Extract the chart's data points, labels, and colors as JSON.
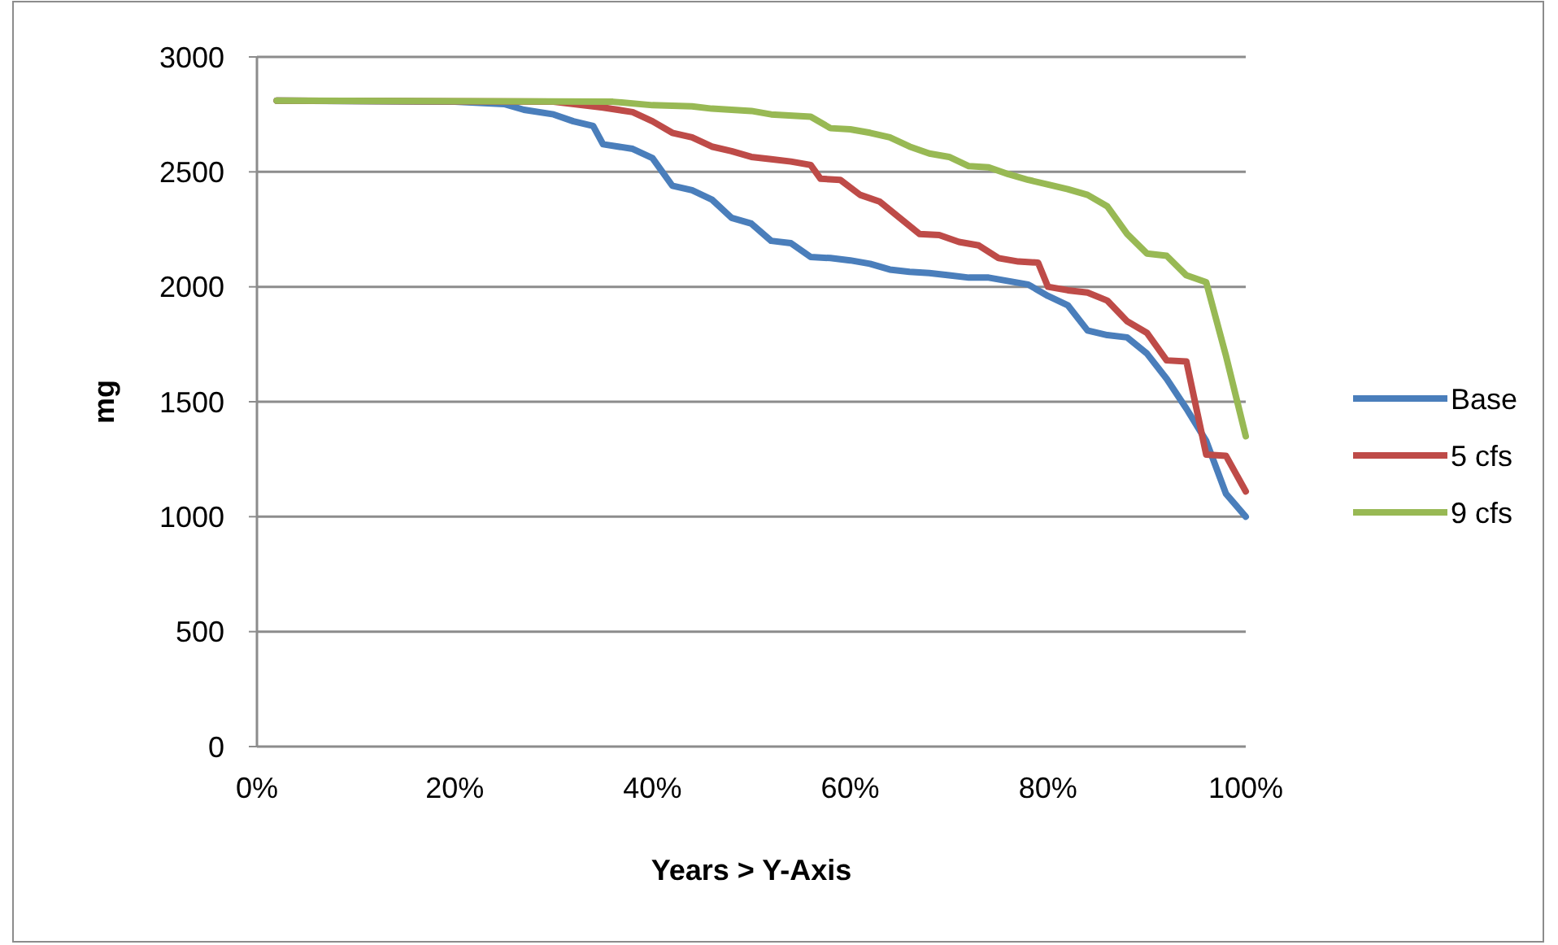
{
  "chart_data": {
    "type": "line",
    "xlabel": "Years > Y-Axis",
    "ylabel": "mg",
    "xlim": [
      0,
      100
    ],
    "xticks": [
      {
        "value": 0,
        "label": "0%"
      },
      {
        "value": 20,
        "label": "20%"
      },
      {
        "value": 40,
        "label": "40%"
      },
      {
        "value": 60,
        "label": "60%"
      },
      {
        "value": 80,
        "label": "80%"
      },
      {
        "value": 100,
        "label": "100%"
      }
    ],
    "ylim": [
      0,
      3000
    ],
    "yticks": [
      0,
      500,
      1000,
      1500,
      2000,
      2500,
      3000
    ],
    "grid": "y",
    "legend": "right",
    "marker": "none",
    "line_style": "solid",
    "series": [
      {
        "name": "Base",
        "color": "#4a7ebb",
        "x": [
          2,
          20,
          25,
          27,
          30,
          32,
          34,
          35,
          38,
          40,
          42,
          44,
          46,
          48,
          50,
          52,
          54,
          56,
          58,
          60,
          62,
          64,
          66,
          68,
          70,
          72,
          74,
          76,
          78,
          80,
          82,
          84,
          86,
          88,
          90,
          92,
          94,
          96,
          98,
          100
        ],
        "values": [
          2810,
          2805,
          2795,
          2770,
          2750,
          2720,
          2700,
          2620,
          2600,
          2560,
          2440,
          2420,
          2380,
          2300,
          2275,
          2200,
          2190,
          2130,
          2125,
          2115,
          2100,
          2075,
          2065,
          2060,
          2050,
          2040,
          2040,
          2025,
          2010,
          1960,
          1920,
          1810,
          1790,
          1780,
          1710,
          1600,
          1470,
          1330,
          1100,
          1000
        ]
      },
      {
        "name": "5 cfs",
        "color": "#be4b48",
        "x": [
          2,
          30,
          35,
          38,
          40,
          42,
          44,
          46,
          48,
          50,
          52,
          54,
          56,
          57,
          59,
          61,
          63,
          65,
          67,
          69,
          71,
          73,
          75,
          77,
          79,
          80,
          82,
          84,
          86,
          88,
          90,
          92,
          94,
          96,
          98,
          100
        ],
        "values": [
          2810,
          2805,
          2780,
          2760,
          2720,
          2670,
          2650,
          2610,
          2590,
          2565,
          2555,
          2545,
          2530,
          2470,
          2465,
          2400,
          2370,
          2300,
          2230,
          2225,
          2195,
          2180,
          2125,
          2110,
          2105,
          2000,
          1985,
          1975,
          1940,
          1850,
          1800,
          1680,
          1675,
          1270,
          1265,
          1110
        ]
      },
      {
        "name": "9 cfs",
        "color": "#98b954",
        "x": [
          2,
          36,
          40,
          44,
          46,
          50,
          52,
          56,
          58,
          60,
          62,
          64,
          66,
          68,
          70,
          72,
          74,
          76,
          78,
          80,
          82,
          84,
          86,
          88,
          90,
          92,
          94,
          96,
          98,
          100
        ],
        "values": [
          2810,
          2805,
          2790,
          2785,
          2775,
          2765,
          2750,
          2740,
          2690,
          2685,
          2670,
          2650,
          2610,
          2580,
          2565,
          2525,
          2520,
          2490,
          2465,
          2445,
          2425,
          2400,
          2350,
          2230,
          2145,
          2135,
          2050,
          2020,
          1700,
          1350
        ]
      }
    ]
  }
}
